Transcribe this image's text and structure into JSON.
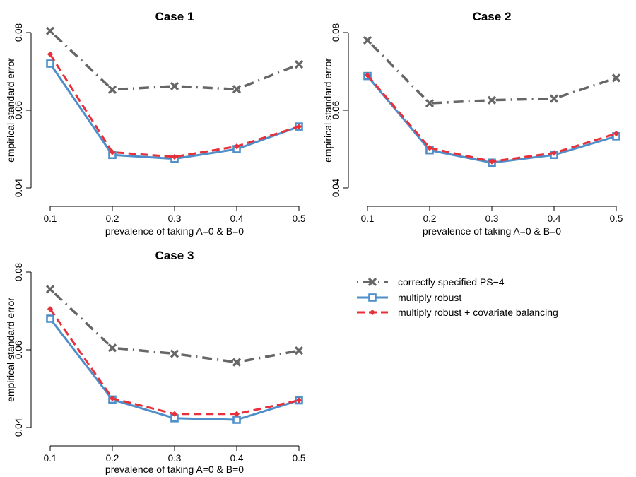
{
  "chart_data": [
    {
      "type": "line",
      "title": "Case 1",
      "xlabel": "prevalence of taking A=0 & B=0",
      "ylabel": "empirical standard error",
      "x": [
        0.1,
        0.2,
        0.3,
        0.4,
        0.5
      ],
      "xtick_labels": [
        "0.1",
        "0.2",
        "0.3",
        "0.4",
        "0.5"
      ],
      "ylim": [
        0.04,
        0.08
      ],
      "ytick_values": [
        0.04,
        0.06,
        0.08
      ],
      "ytick_labels": [
        "0.04",
        "0.06",
        "0.08"
      ],
      "series": [
        {
          "name": "correctly specified PS−4",
          "values": [
            0.0804,
            0.0653,
            0.0662,
            0.0654,
            0.0718
          ]
        },
        {
          "name": "multiply robust",
          "values": [
            0.072,
            0.0485,
            0.0475,
            0.05,
            0.0558
          ]
        },
        {
          "name": "multiply robust + covariate balancing",
          "values": [
            0.0744,
            0.0492,
            0.048,
            0.0507,
            0.0558
          ]
        }
      ]
    },
    {
      "type": "line",
      "title": "Case 2",
      "xlabel": "prevalence of taking A=0 & B=0",
      "ylabel": "empirical standard error",
      "x": [
        0.1,
        0.2,
        0.3,
        0.4,
        0.5
      ],
      "xtick_labels": [
        "0.1",
        "0.2",
        "0.3",
        "0.4",
        "0.5"
      ],
      "ylim": [
        0.04,
        0.08
      ],
      "ytick_values": [
        0.04,
        0.06,
        0.08
      ],
      "ytick_labels": [
        "0.04",
        "0.06",
        "0.08"
      ],
      "series": [
        {
          "name": "correctly specified PS−4",
          "values": [
            0.078,
            0.0618,
            0.0626,
            0.063,
            0.0683
          ]
        },
        {
          "name": "multiply robust",
          "values": [
            0.0688,
            0.0497,
            0.0465,
            0.0485,
            0.0533
          ]
        },
        {
          "name": "multiply robust + covariate balancing",
          "values": [
            0.069,
            0.0503,
            0.0468,
            0.049,
            0.054
          ]
        }
      ]
    },
    {
      "type": "line",
      "title": "Case 3",
      "xlabel": "prevalence of taking A=0 & B=0",
      "ylabel": "empirical standard error",
      "x": [
        0.1,
        0.2,
        0.3,
        0.4,
        0.5
      ],
      "xtick_labels": [
        "0.1",
        "0.2",
        "0.3",
        "0.4",
        "0.5"
      ],
      "ylim": [
        0.04,
        0.08
      ],
      "ytick_values": [
        0.04,
        0.06,
        0.08
      ],
      "ytick_labels": [
        "0.04",
        "0.06",
        "0.08"
      ],
      "series": [
        {
          "name": "correctly specified PS−4",
          "values": [
            0.0756,
            0.0605,
            0.059,
            0.0568,
            0.0598
          ]
        },
        {
          "name": "multiply robust",
          "values": [
            0.068,
            0.0472,
            0.0424,
            0.042,
            0.047
          ]
        },
        {
          "name": "multiply robust + covariate balancing",
          "values": [
            0.0705,
            0.0475,
            0.0435,
            0.0435,
            0.047
          ]
        }
      ]
    }
  ],
  "legend": {
    "placement": "bottom-right",
    "entries": [
      {
        "label": "correctly specified PS−4",
        "color": "#666666",
        "marker": "x-icon"
      },
      {
        "label": "multiply robust",
        "color": "#4e8fc9",
        "marker": "square-icon"
      },
      {
        "label": "multiply robust + covariate balancing",
        "color": "#e8303a",
        "marker": "diamond-icon"
      }
    ]
  },
  "colors": {
    "ps4": "#666666",
    "mr": "#4e8fc9",
    "mrcb": "#e8303a",
    "axis": "#000000"
  }
}
